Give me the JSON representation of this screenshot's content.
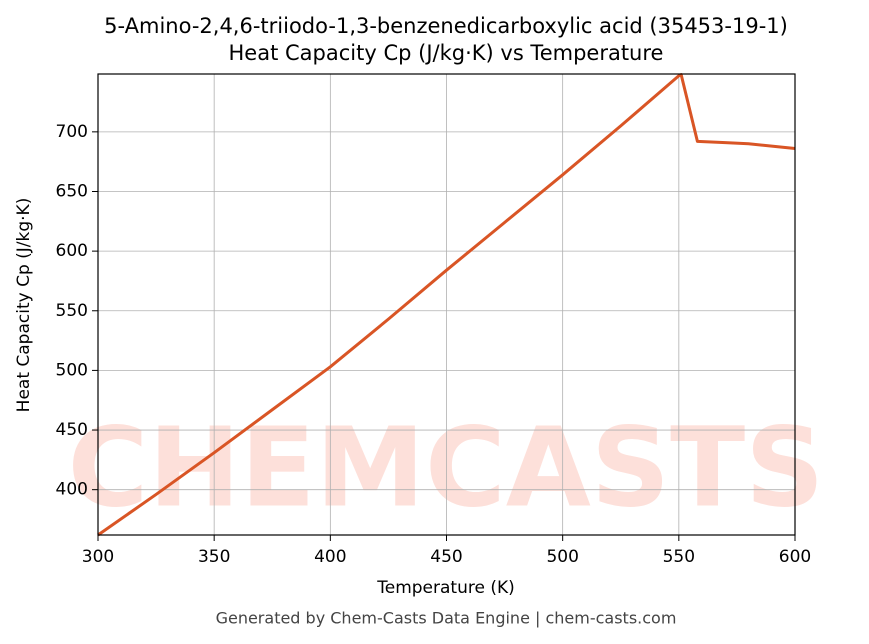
{
  "chart_data": {
    "type": "line",
    "title": "5-Amino-2,4,6-triiodo-1,3-benzenedicarboxylic acid (35453-19-1)",
    "subtitle": "Heat Capacity Cp (J/kg·K) vs Temperature",
    "x_label": "Temperature (K)",
    "y_label": "Heat Capacity Cp (J/kg·K)",
    "footer": "Generated by Chem-Casts Data Engine | chem-casts.com",
    "watermark": "CHEMCASTS",
    "x": [
      300,
      325,
      350,
      375,
      400,
      425,
      450,
      475,
      500,
      525,
      550,
      551,
      558,
      570,
      580,
      590,
      600
    ],
    "series": [
      {
        "name": "Cp",
        "color": "#d95525",
        "values": [
          362,
          396,
          431,
          467,
          503,
          543,
          584,
          624,
          664,
          705,
          747,
          748,
          692,
          691,
          690,
          688,
          686
        ]
      }
    ],
    "xlim": [
      300,
      600
    ],
    "xticks": [
      300,
      350,
      400,
      450,
      500,
      550,
      600
    ],
    "ylim": [
      362,
      748.5
    ],
    "yticks": [
      400,
      450,
      500,
      550,
      600,
      650,
      700
    ],
    "grid": true
  }
}
